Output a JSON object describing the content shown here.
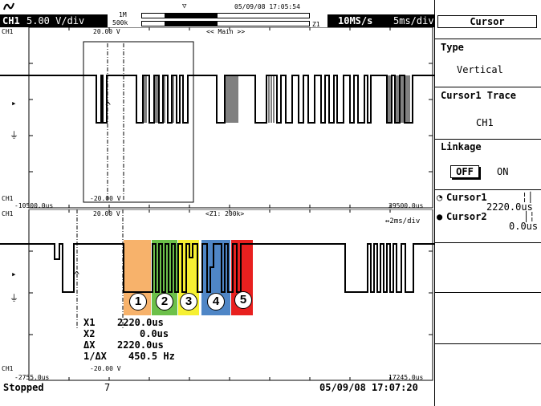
{
  "header": {
    "channel": "CH1",
    "volts_div": "5.00 V/div",
    "mem_top": "1M",
    "mem_bottom": "500k",
    "datetime_top": "05/09/08 17:05:54",
    "zoom_marker": "Z1",
    "sample_rate": "10MS/s",
    "time_div": "5ms/div"
  },
  "main_window": {
    "ch_label_top": "CH1",
    "top_level": "20.00 V",
    "title": "<< Main >>",
    "ch_label_bottom": "CH1",
    "left_time": "-10500.0us",
    "bottom_level": "-20.00 V",
    "right_time": "39500.0us"
  },
  "zoom_window": {
    "ch_label_top": "CH1",
    "top_level": "20.00 V",
    "title": "<Z1: 200k>",
    "time_div": "↔2ms/div",
    "ch_label_bottom": "CH1",
    "left_time": "-2755.0us",
    "bottom_level": "-20.00 V",
    "right_time": "17245.0us"
  },
  "measurements": [
    {
      "label": "X1",
      "value": "2220.0us"
    },
    {
      "label": "X2",
      "value": "0.0us"
    },
    {
      "label": "ΔX",
      "value": "2220.0us"
    },
    {
      "label": "1/ΔX",
      "value": "450.5 Hz"
    }
  ],
  "annotations": [
    {
      "number": "1",
      "color": "#f7b26b"
    },
    {
      "number": "2",
      "color": "#6cc04a"
    },
    {
      "number": "3",
      "color": "#f6f032"
    },
    {
      "number": "4",
      "color": "#4f86c6"
    },
    {
      "number": "5",
      "color": "#e8201f"
    }
  ],
  "status": {
    "state": "Stopped",
    "count": "7",
    "datetime": "05/09/08 17:07:20"
  },
  "side_panel": {
    "title": "Cursor",
    "type_label": "Type",
    "type_value": "Vertical",
    "trace_label": "Cursor1 Trace",
    "trace_value": "CH1",
    "linkage_label": "Linkage",
    "linkage_off": "OFF",
    "linkage_on": "ON",
    "cursor1_label": "Cursor1",
    "cursor1_value": "2220.0us",
    "cursor2_label": "Cursor2",
    "cursor2_value": "0.0us"
  }
}
